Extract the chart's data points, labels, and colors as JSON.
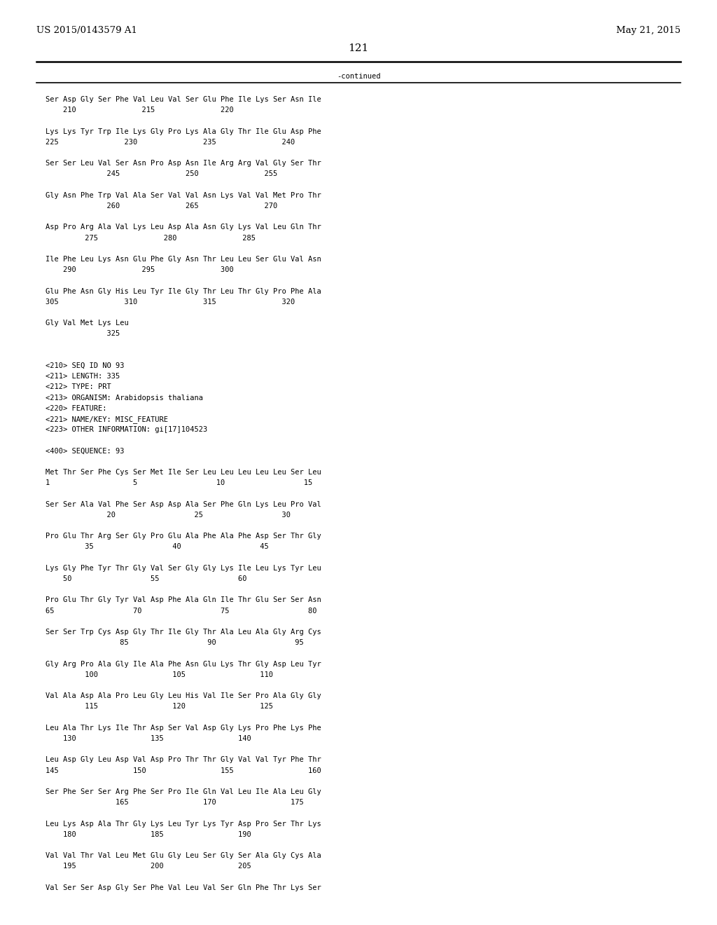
{
  "background_color": "#ffffff",
  "header_left": "US 2015/0143579 A1",
  "header_right": "May 21, 2015",
  "page_number": "121",
  "continued_text": "-continued",
  "header_fontsize": 9.5,
  "body_fontsize": 7.5,
  "lines": [
    "Ser Asp Gly Ser Phe Val Leu Val Ser Glu Phe Ile Lys Ser Asn Ile",
    "    210               215               220",
    "",
    "Lys Lys Tyr Trp Ile Lys Gly Pro Lys Ala Gly Thr Ile Glu Asp Phe",
    "225               230               235               240",
    "",
    "Ser Ser Leu Val Ser Asn Pro Asp Asn Ile Arg Arg Val Gly Ser Thr",
    "              245               250               255",
    "",
    "Gly Asn Phe Trp Val Ala Ser Val Val Asn Lys Val Val Met Pro Thr",
    "              260               265               270",
    "",
    "Asp Pro Arg Ala Val Lys Leu Asp Ala Asn Gly Lys Val Leu Gln Thr",
    "         275               280               285",
    "",
    "Ile Phe Leu Lys Asn Glu Phe Gly Asn Thr Leu Leu Ser Glu Val Asn",
    "    290               295               300",
    "",
    "Glu Phe Asn Gly His Leu Tyr Ile Gly Thr Leu Thr Gly Pro Phe Ala",
    "305               310               315               320",
    "",
    "Gly Val Met Lys Leu",
    "              325",
    "",
    "",
    "<210> SEQ ID NO 93",
    "<211> LENGTH: 335",
    "<212> TYPE: PRT",
    "<213> ORGANISM: Arabidopsis thaliana",
    "<220> FEATURE:",
    "<221> NAME/KEY: MISC_FEATURE",
    "<223> OTHER INFORMATION: gi[17]104523",
    "",
    "<400> SEQUENCE: 93",
    "",
    "Met Thr Ser Phe Cys Ser Met Ile Ser Leu Leu Leu Leu Leu Ser Leu",
    "1                   5                  10                  15",
    "",
    "Ser Ser Ala Val Phe Ser Asp Asp Ala Ser Phe Gln Lys Leu Pro Val",
    "              20                  25                  30",
    "",
    "Pro Glu Thr Arg Ser Gly Pro Glu Ala Phe Ala Phe Asp Ser Thr Gly",
    "         35                  40                  45",
    "",
    "Lys Gly Phe Tyr Thr Gly Val Ser Gly Gly Lys Ile Leu Lys Tyr Leu",
    "    50                  55                  60",
    "",
    "Pro Glu Thr Gly Tyr Val Asp Phe Ala Gln Ile Thr Glu Ser Ser Asn",
    "65                  70                  75                  80",
    "",
    "Ser Ser Trp Cys Asp Gly Thr Ile Gly Thr Ala Leu Ala Gly Arg Cys",
    "                 85                  90                  95",
    "",
    "Gly Arg Pro Ala Gly Ile Ala Phe Asn Glu Lys Thr Gly Asp Leu Tyr",
    "         100                 105                 110",
    "",
    "Val Ala Asp Ala Pro Leu Gly Leu His Val Ile Ser Pro Ala Gly Gly",
    "         115                 120                 125",
    "",
    "Leu Ala Thr Lys Ile Thr Asp Ser Val Asp Gly Lys Pro Phe Lys Phe",
    "    130                 135                 140",
    "",
    "Leu Asp Gly Leu Asp Val Asp Pro Thr Thr Gly Val Val Tyr Phe Thr",
    "145                 150                 155                 160",
    "",
    "Ser Phe Ser Ser Arg Phe Ser Pro Ile Gln Val Leu Ile Ala Leu Gly",
    "                165                 170                 175",
    "",
    "Leu Lys Asp Ala Thr Gly Lys Leu Tyr Lys Tyr Asp Pro Ser Thr Lys",
    "    180                 185                 190",
    "",
    "Val Val Thr Val Leu Met Glu Gly Leu Ser Gly Ser Ala Gly Cys Ala",
    "    195                 200                 205",
    "",
    "Val Ser Ser Asp Gly Ser Phe Val Leu Val Ser Gln Phe Thr Lys Ser"
  ]
}
